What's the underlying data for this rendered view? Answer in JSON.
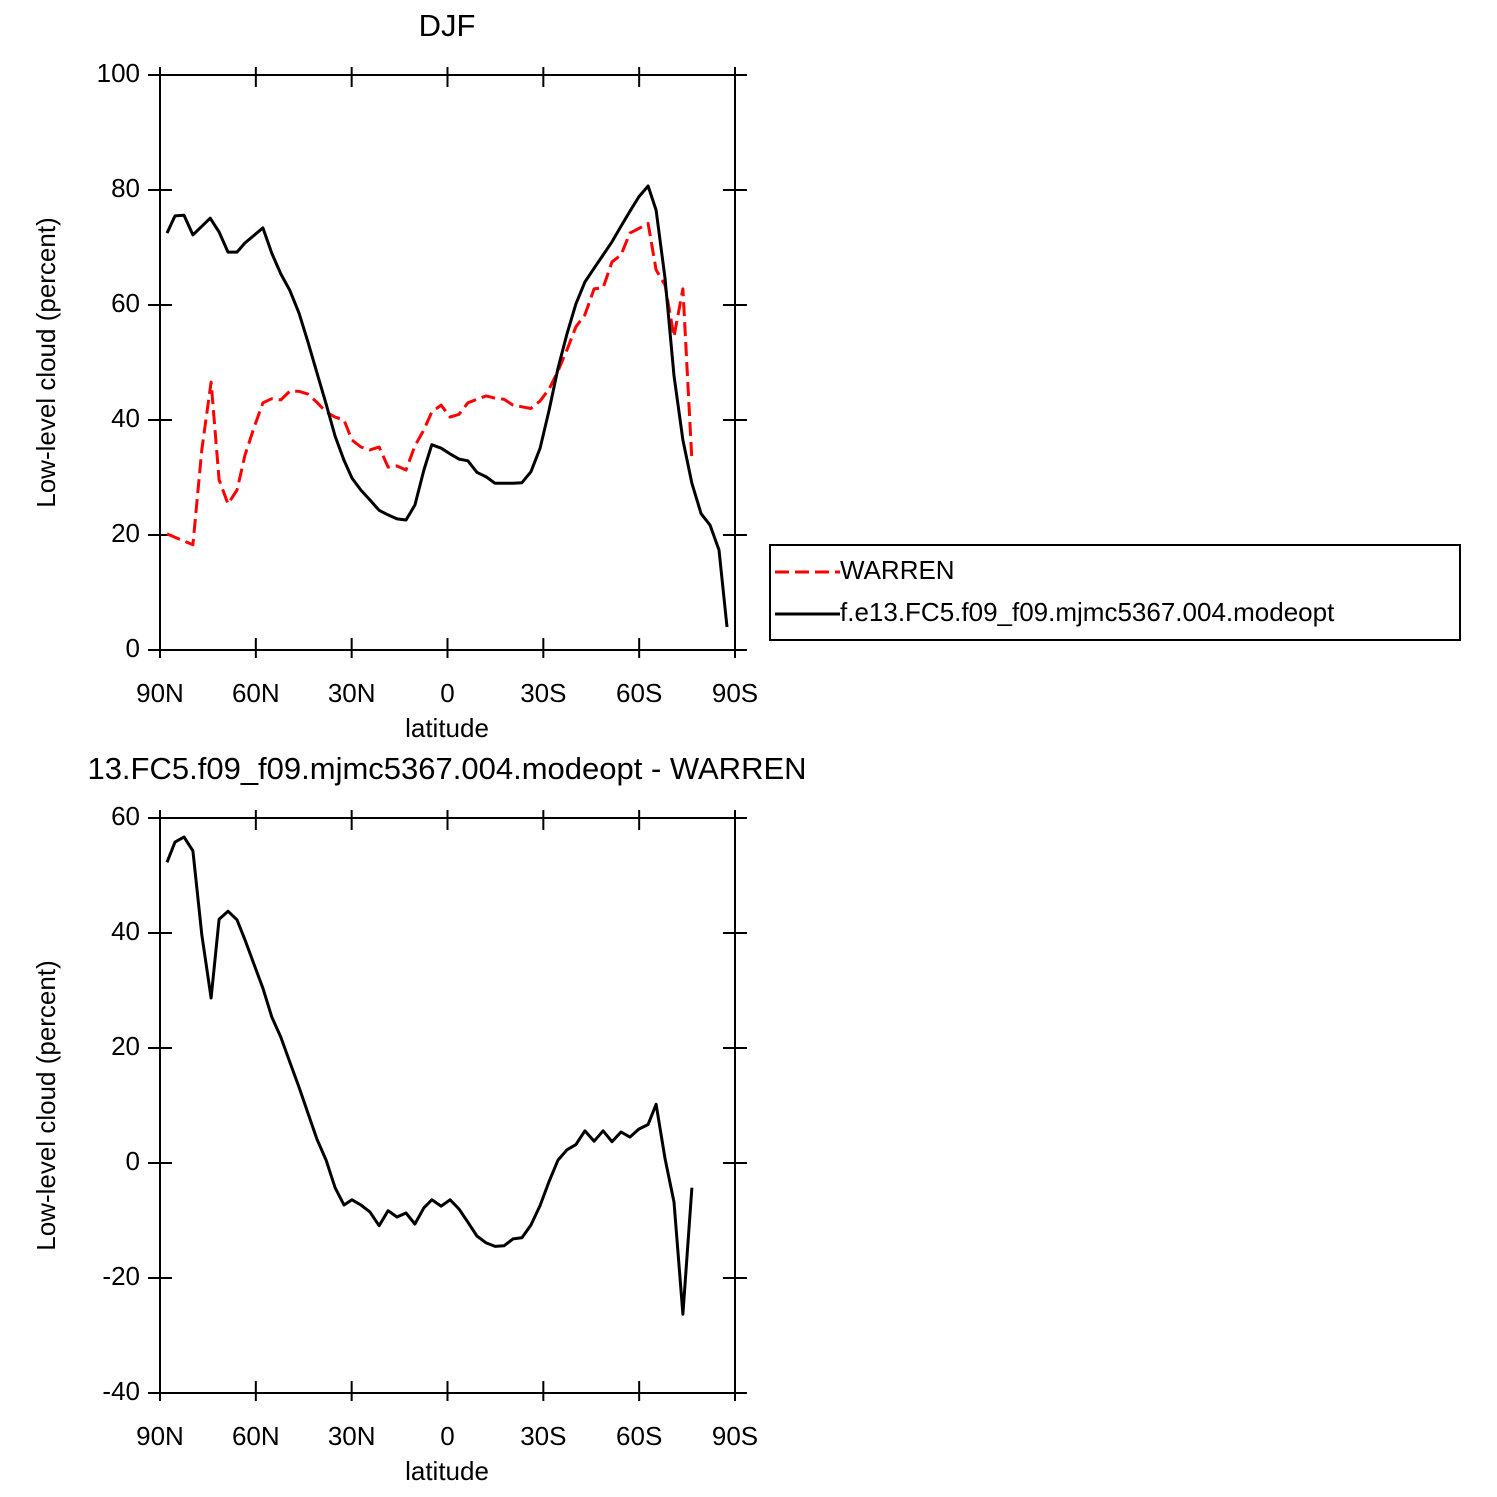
{
  "chart_data": [
    {
      "type": "line",
      "title": "DJF",
      "xlabel": "latitude",
      "ylabel": "Low-level cloud (percent)",
      "xlim": [
        90,
        -90
      ],
      "xticks": [
        {
          "value": 90,
          "label": "90N"
        },
        {
          "value": 60,
          "label": "60N"
        },
        {
          "value": 30,
          "label": "30N"
        },
        0,
        {
          "value": -30,
          "label": "30S"
        },
        {
          "value": -60,
          "label": "60S"
        },
        {
          "value": -90,
          "label": "90S"
        }
      ],
      "ylim": [
        0,
        100
      ],
      "yticks": [
        0,
        20,
        40,
        60,
        80,
        100
      ],
      "legend": "right",
      "series": [
        {
          "name": "WARREN",
          "color": "#ff0000",
          "dashed": true,
          "x": [
            87.8,
            79.7,
            76.9,
            74.0,
            71.5,
            68.7,
            65.9,
            63.4,
            60.6,
            57.8,
            55.0,
            52.2,
            49.4,
            46.5,
            43.7,
            40.9,
            38.0,
            35.2,
            32.4,
            29.9,
            27.1,
            24.3,
            21.4,
            18.6,
            15.8,
            13.0,
            10.2,
            7.4,
            4.9,
            2.0,
            -0.8,
            -3.6,
            -6.4,
            -9.2,
            -12.1,
            -14.9,
            -17.7,
            -20.5,
            -23.3,
            -26.1,
            -29.0,
            -31.8,
            -34.6,
            -37.4,
            -40.2,
            -43.0,
            -45.9,
            -48.7,
            -51.5,
            -54.3,
            -57.1,
            -59.9,
            -62.8,
            -65.3,
            -68.1,
            -70.9,
            -73.7,
            -76.5
          ],
          "values": [
            20.2,
            18.3,
            34.8,
            46.6,
            29.6,
            25.4,
            27.8,
            33.9,
            38.6,
            43.0,
            43.7,
            43.5,
            45.0,
            45.0,
            44.5,
            43.1,
            41.4,
            40.5,
            40.0,
            36.5,
            35.3,
            34.8,
            35.3,
            31.8,
            32.0,
            31.3,
            35.5,
            38.3,
            41.4,
            42.6,
            40.5,
            41.0,
            43.0,
            43.6,
            44.2,
            43.8,
            43.6,
            42.6,
            42.3,
            42.0,
            43.3,
            45.4,
            48.5,
            52.2,
            56.2,
            58.3,
            62.8,
            63.0,
            67.5,
            68.7,
            72.5,
            73.3,
            74.2,
            66.1,
            63.5,
            54.5,
            62.8,
            33.0
          ]
        },
        {
          "name": "f.e13.FC5.f09_f09.mjmc5367.004.modeopt",
          "color": "#000000",
          "dashed": false,
          "x": [
            87.8,
            85.3,
            82.5,
            79.7,
            74.3,
            71.5,
            68.7,
            65.9,
            63.4,
            57.8,
            55.0,
            52.2,
            49.4,
            46.5,
            43.7,
            40.9,
            38.0,
            35.2,
            32.4,
            29.9,
            27.1,
            24.3,
            21.4,
            18.6,
            15.8,
            13.0,
            10.2,
            7.4,
            4.9,
            2.0,
            -0.8,
            -3.6,
            -6.4,
            -9.2,
            -12.1,
            -14.9,
            -17.7,
            -20.5,
            -23.3,
            -26.1,
            -29.0,
            -31.8,
            -34.6,
            -37.4,
            -40.2,
            -43.0,
            -45.9,
            -48.7,
            -51.5,
            -54.3,
            -57.1,
            -59.9,
            -62.8,
            -65.3,
            -68.1,
            -70.9,
            -73.7,
            -76.5,
            -79.4,
            -82.2,
            -85.0,
            -87.5
          ],
          "values": [
            72.5,
            75.5,
            75.6,
            72.2,
            75.1,
            72.7,
            69.2,
            69.2,
            70.8,
            73.4,
            69.0,
            65.4,
            62.6,
            58.6,
            53.6,
            48.3,
            42.8,
            37.2,
            33.0,
            29.9,
            27.8,
            26.1,
            24.3,
            23.5,
            22.8,
            22.6,
            25.2,
            31.3,
            35.7,
            35.1,
            34.1,
            33.2,
            32.9,
            30.9,
            30.1,
            29.0,
            29.0,
            29.0,
            29.1,
            31.0,
            35.1,
            41.7,
            49.0,
            55.0,
            60.2,
            64.0,
            66.4,
            68.7,
            71.0,
            73.7,
            76.3,
            78.8,
            80.7,
            76.5,
            64.7,
            47.7,
            36.5,
            29.0,
            23.7,
            21.7,
            17.4,
            4.0
          ]
        }
      ]
    },
    {
      "type": "line",
      "title": "13.FC5.f09_f09.mjmc5367.004.modeopt - WARREN",
      "xlabel": "latitude",
      "ylabel": "Low-level cloud (percent)",
      "xlim": [
        90,
        -90
      ],
      "xticks": [
        {
          "value": 90,
          "label": "90N"
        },
        {
          "value": 60,
          "label": "60N"
        },
        {
          "value": 30,
          "label": "30N"
        },
        0,
        {
          "value": -30,
          "label": "30S"
        },
        {
          "value": -60,
          "label": "60S"
        },
        {
          "value": -90,
          "label": "90S"
        }
      ],
      "ylim": [
        -40,
        60
      ],
      "yticks": [
        -40,
        -20,
        0,
        20,
        40,
        60
      ],
      "series": [
        {
          "color": "#000000",
          "dashed": false,
          "x": [
            87.8,
            85.3,
            82.5,
            79.7,
            76.9,
            74.0,
            71.5,
            68.7,
            65.9,
            63.4,
            60.6,
            57.8,
            55.0,
            52.2,
            49.4,
            46.5,
            43.7,
            40.9,
            38.0,
            35.2,
            32.4,
            29.9,
            27.1,
            24.3,
            21.4,
            18.6,
            15.8,
            13.0,
            10.2,
            7.4,
            4.9,
            2.0,
            -0.8,
            -3.6,
            -6.4,
            -9.2,
            -12.1,
            -14.9,
            -17.7,
            -20.5,
            -23.3,
            -26.1,
            -29.0,
            -31.8,
            -34.6,
            -37.4,
            -40.2,
            -43.0,
            -45.9,
            -48.7,
            -51.5,
            -54.3,
            -57.1,
            -59.9,
            -62.8,
            -65.3,
            -68.1,
            -70.9,
            -73.7,
            -76.5
          ],
          "values": [
            52.3,
            55.8,
            56.7,
            54.3,
            39.7,
            28.7,
            42.4,
            43.8,
            42.3,
            38.8,
            34.6,
            30.4,
            25.4,
            21.9,
            17.6,
            13.2,
            8.7,
            4.2,
            0.5,
            -4.3,
            -7.3,
            -6.4,
            -7.3,
            -8.5,
            -10.9,
            -8.3,
            -9.4,
            -8.7,
            -10.6,
            -7.8,
            -6.4,
            -7.5,
            -6.4,
            -8.0,
            -10.3,
            -12.7,
            -13.9,
            -14.5,
            -14.4,
            -13.2,
            -13.0,
            -10.8,
            -7.4,
            -3.2,
            0.5,
            2.3,
            3.2,
            5.6,
            3.8,
            5.6,
            3.7,
            5.4,
            4.5,
            5.9,
            6.7,
            10.2,
            0.8,
            -6.8,
            -26.3,
            -4.3
          ]
        }
      ]
    }
  ]
}
